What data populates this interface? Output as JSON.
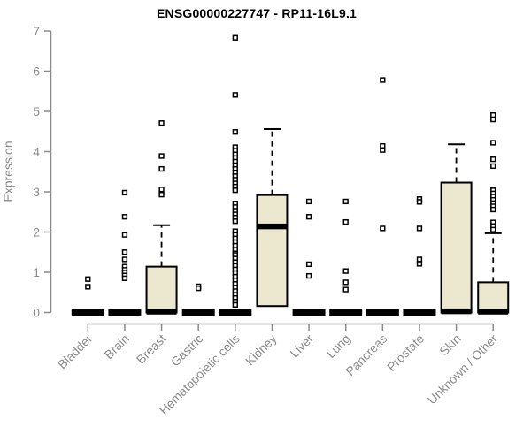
{
  "chart_data": {
    "type": "boxplot",
    "title": "ENSG00000227747 - RP11-16L9.1",
    "ylabel": "Expression",
    "xlabel": "",
    "ylim": [
      0,
      7
    ],
    "yticks": [
      0,
      1,
      2,
      3,
      4,
      5,
      6,
      7
    ],
    "categories": [
      "Bladder",
      "Brain",
      "Breast",
      "Gastric",
      "Hematopoietic cells",
      "Kidney",
      "Liver",
      "Lung",
      "Pancreas",
      "Prostate",
      "Skin",
      "Unknown / Other"
    ],
    "layout": {
      "grid": false,
      "legend": false,
      "x_label_rotation": 45,
      "whisker_style": "dashed",
      "outlier_marker": "open-square"
    },
    "colors": {
      "box_fill": "#ECE7CF",
      "box_stroke": "#000000",
      "median": "#000000",
      "outlier": "#000000",
      "axis": "#8a8a8a",
      "tick_label": "#8a8a8a",
      "title": "#000000",
      "background": "#ffffff"
    },
    "boxes": [
      {
        "category": "Bladder",
        "q1": 0,
        "median": 0,
        "q3": 0,
        "whisker_low": 0,
        "whisker_high": 0,
        "outliers": [
          0.83,
          0.64
        ]
      },
      {
        "category": "Brain",
        "q1": 0,
        "median": 0,
        "q3": 0,
        "whisker_low": 0,
        "whisker_high": 0,
        "outliers": [
          2.98,
          2.38,
          1.93,
          1.5,
          1.32,
          1.14,
          1.06,
          0.99,
          0.92,
          0.85
        ]
      },
      {
        "category": "Breast",
        "q1": 0,
        "median": 0.02,
        "q3": 1.14,
        "whisker_low": 0,
        "whisker_high": 2.17,
        "outliers": [
          4.71,
          3.89,
          3.57,
          3.06,
          2.93
        ]
      },
      {
        "category": "Gastric",
        "q1": 0,
        "median": 0,
        "q3": 0,
        "whisker_low": 0,
        "whisker_high": 0,
        "outliers": [
          0.65,
          0.6
        ]
      },
      {
        "category": "Hematopoietic cells",
        "q1": 0,
        "median": 0,
        "q3": 0,
        "whisker_low": 0,
        "whisker_high": 0,
        "outliers": [
          6.83,
          5.41,
          4.49,
          4.11,
          4.02,
          3.93,
          3.84,
          3.75,
          3.66,
          3.57,
          3.48,
          3.39,
          3.3,
          3.21,
          3.13,
          3.04,
          2.71,
          2.62,
          2.53,
          2.44,
          2.36,
          2.27,
          2.02,
          1.93,
          1.84,
          1.75,
          1.66,
          1.56,
          1.47,
          1.43,
          1.34,
          1.25,
          1.16,
          1.07,
          0.98,
          0.89,
          0.8,
          0.71,
          0.62,
          0.53,
          0.44,
          0.36,
          0.27,
          0.19
        ]
      },
      {
        "category": "Kidney",
        "q1": 0.16,
        "median": 2.14,
        "q3": 2.92,
        "whisker_low": 0.16,
        "whisker_high": 4.56,
        "outliers": []
      },
      {
        "category": "Liver",
        "q1": 0,
        "median": 0,
        "q3": 0,
        "whisker_low": 0,
        "whisker_high": 0,
        "outliers": [
          2.76,
          2.38,
          1.2,
          0.91
        ]
      },
      {
        "category": "Lung",
        "q1": 0,
        "median": 0,
        "q3": 0,
        "whisker_low": 0,
        "whisker_high": 0,
        "outliers": [
          2.76,
          2.25,
          1.03,
          0.75,
          0.57
        ]
      },
      {
        "category": "Pancreas",
        "q1": 0,
        "median": 0,
        "q3": 0,
        "whisker_low": 0,
        "whisker_high": 0,
        "outliers": [
          5.78,
          4.14,
          4.04,
          2.09
        ]
      },
      {
        "category": "Prostate",
        "q1": 0,
        "median": 0,
        "q3": 0,
        "whisker_low": 0,
        "whisker_high": 0,
        "outliers": [
          2.82,
          2.75,
          2.09,
          1.32,
          1.21
        ]
      },
      {
        "category": "Skin",
        "q1": 0,
        "median": 0.03,
        "q3": 3.23,
        "whisker_low": 0,
        "whisker_high": 4.18,
        "outliers": []
      },
      {
        "category": "Unknown / Other",
        "q1": 0,
        "median": 0.02,
        "q3": 0.75,
        "whisker_low": 0,
        "whisker_high": 1.97,
        "outliers": [
          4.91,
          4.8,
          4.22,
          3.81,
          3.64,
          3.04,
          2.96,
          2.88,
          2.8,
          2.72,
          2.64,
          2.56,
          2.24,
          2.15,
          2.06
        ]
      }
    ]
  }
}
